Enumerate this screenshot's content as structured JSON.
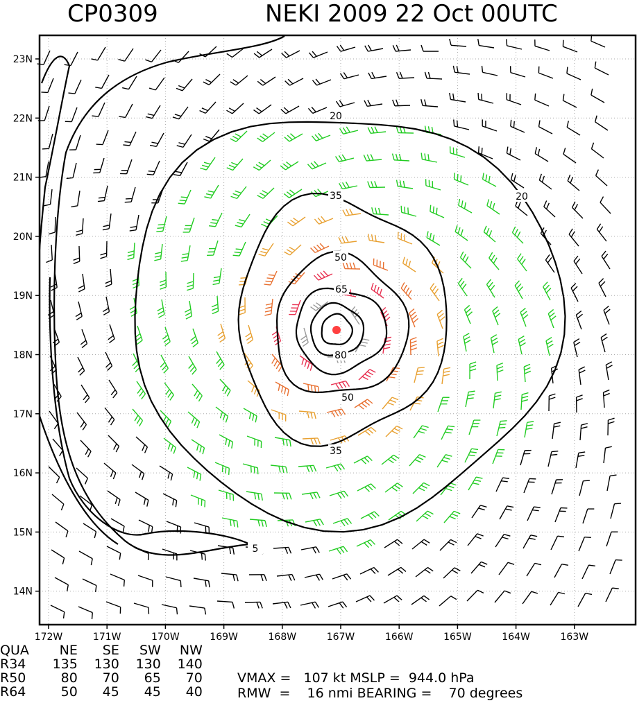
{
  "header": {
    "storm_id": "CP0309",
    "storm_label": "NEKI 2009 22 Oct 00UTC"
  },
  "map": {
    "lon_ticks": [
      "172W",
      "171W",
      "170W",
      "169W",
      "168W",
      "167W",
      "166W",
      "165W",
      "164W",
      "163W"
    ],
    "lat_ticks": [
      "23N",
      "22N",
      "21N",
      "20N",
      "19N",
      "18N",
      "17N",
      "16N",
      "15N",
      "14N"
    ],
    "contour_levels": [
      5,
      20,
      35,
      50,
      65,
      80
    ],
    "contour_labels": [
      "5",
      "20",
      "20",
      "35",
      "35",
      "50",
      "50",
      "65",
      "80"
    ],
    "band_colors": {
      "calm": "#000000",
      "tropical_storm": "#22cc22",
      "strong": "#e8a030",
      "hurricane": "#e87030",
      "major": "#e83050",
      "core": "#999999",
      "center": "#ff4040"
    }
  },
  "stats": {
    "header": [
      "QUA",
      "NE",
      "SE",
      "SW",
      "NW"
    ],
    "rows": [
      [
        "R34",
        "135",
        "130",
        "130",
        "140"
      ],
      [
        "R50",
        "80",
        "70",
        "65",
        "70"
      ],
      [
        "R64",
        "50",
        "45",
        "45",
        "40"
      ]
    ],
    "vmax_line": "VMAX =   107 kt MSLP =  944.0 hPa",
    "rmw_line": "RMW  =    16 nmi BEARING =    70 degrees"
  }
}
